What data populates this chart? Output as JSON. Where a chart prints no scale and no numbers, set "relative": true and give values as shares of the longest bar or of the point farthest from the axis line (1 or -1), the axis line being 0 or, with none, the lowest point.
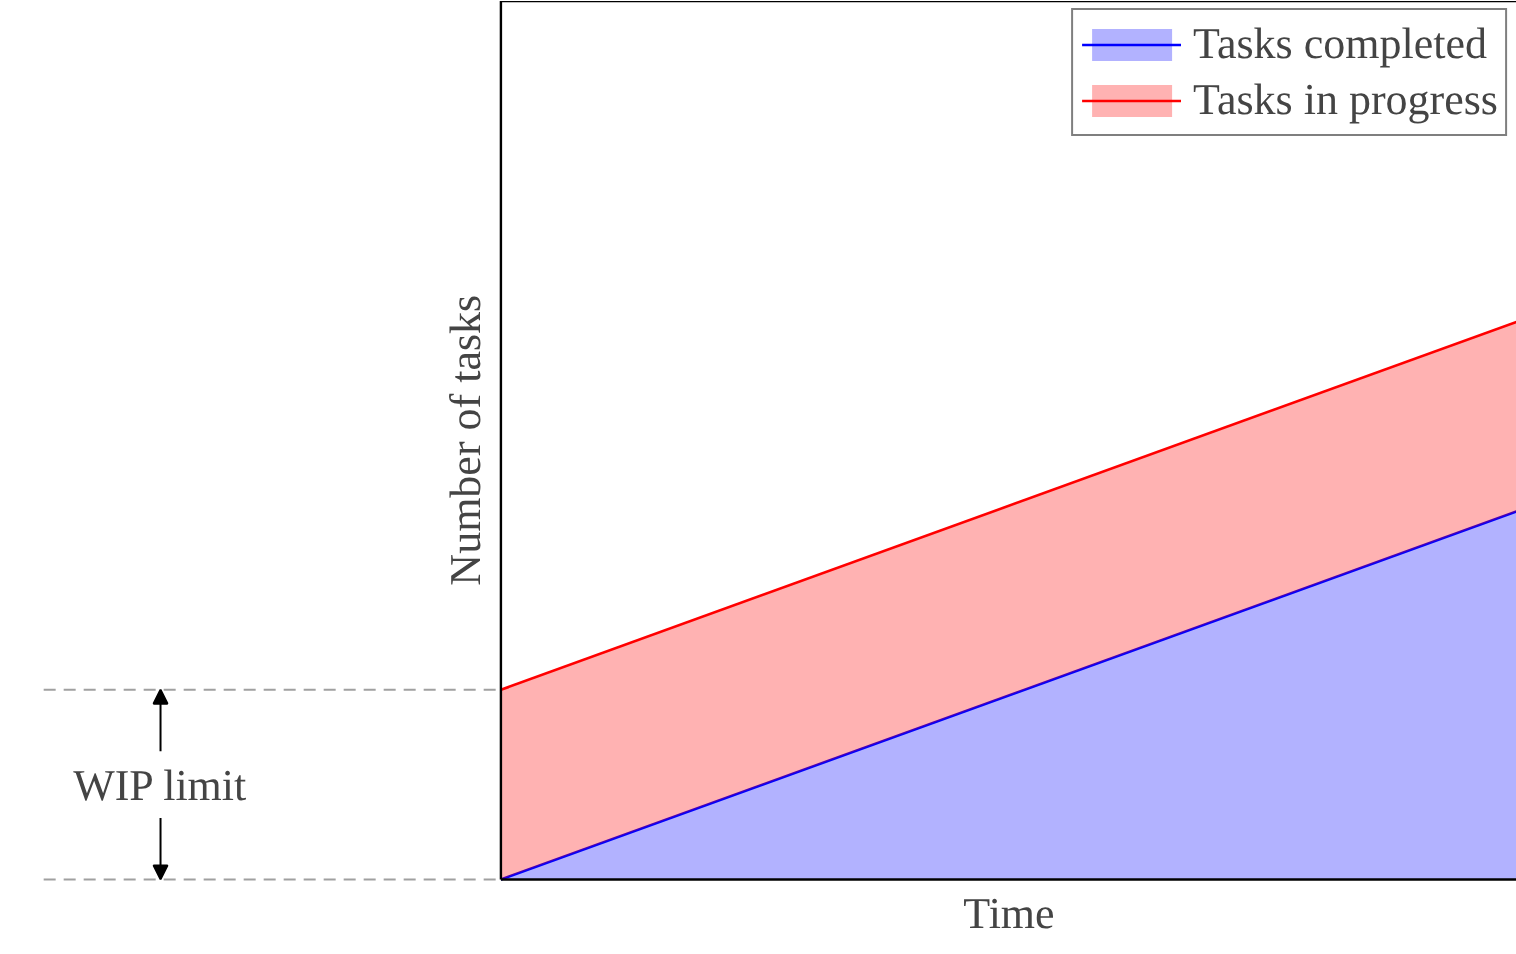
{
  "chart_data": {
    "type": "area",
    "stacked": true,
    "relative": true,
    "xlabel": "Time",
    "ylabel": "Number of tasks",
    "categories": [
      null,
      null
    ],
    "series": [
      {
        "name": "Tasks completed",
        "color": "#0000ff",
        "values": [
          0,
          0.66
        ]
      },
      {
        "name": "Tasks in progress",
        "color": "#ff0000",
        "values": [
          0.34,
          0.34
        ]
      }
    ],
    "ref_lines": [
      {
        "axis": "y",
        "value": 0,
        "line_style": "dashed",
        "color": "#a0a0a0"
      },
      {
        "axis": "y",
        "value": 0.34,
        "label": "WIP limit",
        "line_style": "dashed",
        "color": "#a0a0a0"
      }
    ],
    "legend": "top right"
  }
}
